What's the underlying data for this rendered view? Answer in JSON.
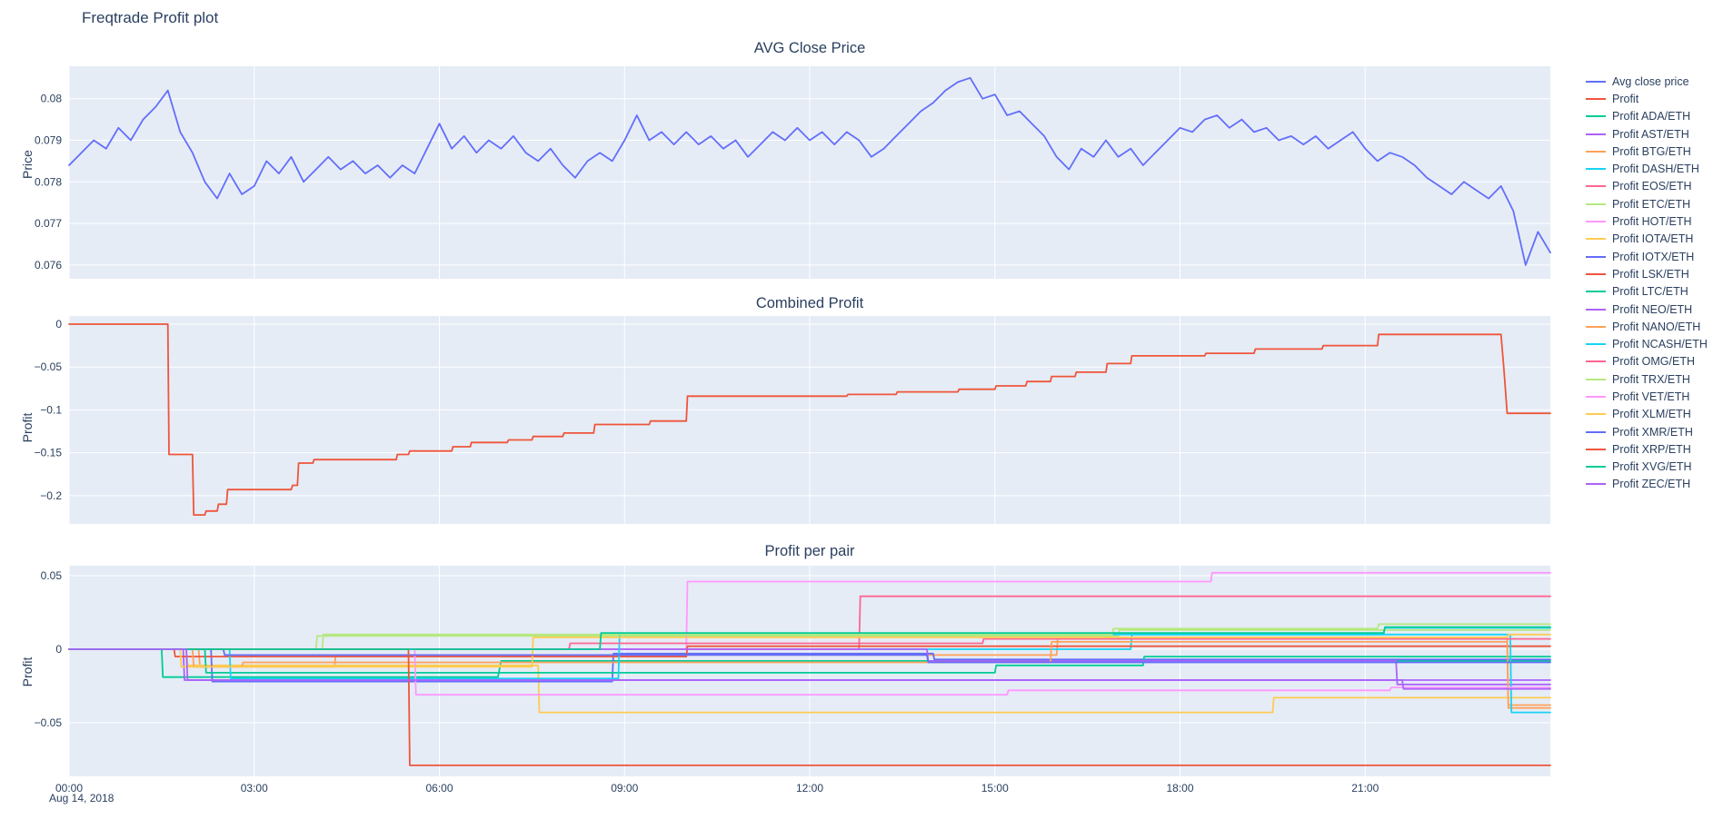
{
  "title": "Freqtrade Profit plot",
  "colors": {
    "text": "#2a3f5f",
    "plot_bg": "#E5ECF6",
    "grid": "#ffffff"
  },
  "xaxis": {
    "range": [
      0,
      24
    ],
    "ticks": [
      0,
      3,
      6,
      9,
      12,
      15,
      18,
      21
    ],
    "ticklabels": [
      "00:00",
      "03:00",
      "06:00",
      "09:00",
      "12:00",
      "15:00",
      "18:00",
      "21:00"
    ],
    "date_label": "Aug 14, 2018"
  },
  "legend": {
    "position": "right"
  },
  "chart_data": [
    {
      "type": "line",
      "title": "AVG Close Price",
      "ylabel": "Price",
      "ylim": [
        0.07567,
        0.08078
      ],
      "yticks": [
        0.076,
        0.077,
        0.078,
        0.079,
        0.08
      ],
      "yticklabels": [
        "0.076",
        "0.077",
        "0.078",
        "0.079",
        "0.08"
      ],
      "series": [
        {
          "name": "Avg close price",
          "color": "#636EFA",
          "x0": 0,
          "dx": 0.2,
          "y": [
            0.0784,
            0.0787,
            0.079,
            0.0788,
            0.0793,
            0.079,
            0.0795,
            0.0798,
            0.0802,
            0.0792,
            0.0787,
            0.078,
            0.0776,
            0.0782,
            0.0777,
            0.0779,
            0.0785,
            0.0782,
            0.0786,
            0.078,
            0.0783,
            0.0786,
            0.0783,
            0.0785,
            0.0782,
            0.0784,
            0.0781,
            0.0784,
            0.0782,
            0.0788,
            0.0794,
            0.0788,
            0.0791,
            0.0787,
            0.079,
            0.0788,
            0.0791,
            0.0787,
            0.0785,
            0.0788,
            0.0784,
            0.0781,
            0.0785,
            0.0787,
            0.0785,
            0.079,
            0.0796,
            0.079,
            0.0792,
            0.0789,
            0.0792,
            0.0789,
            0.0791,
            0.0788,
            0.079,
            0.0786,
            0.0789,
            0.0792,
            0.079,
            0.0793,
            0.079,
            0.0792,
            0.0789,
            0.0792,
            0.079,
            0.0786,
            0.0788,
            0.0791,
            0.0794,
            0.0797,
            0.0799,
            0.0802,
            0.0804,
            0.0805,
            0.08,
            0.0801,
            0.0796,
            0.0797,
            0.0794,
            0.0791,
            0.0786,
            0.0783,
            0.0788,
            0.0786,
            0.079,
            0.0786,
            0.0788,
            0.0784,
            0.0787,
            0.079,
            0.0793,
            0.0792,
            0.0795,
            0.0796,
            0.0793,
            0.0795,
            0.0792,
            0.0793,
            0.079,
            0.0791,
            0.0789,
            0.0791,
            0.0788,
            0.079,
            0.0792,
            0.0788,
            0.0785,
            0.0787,
            0.0786,
            0.0784,
            0.0781,
            0.0779,
            0.0777,
            0.078,
            0.0778,
            0.0776,
            0.0779,
            0.0773,
            0.076,
            0.0768,
            0.0763
          ]
        }
      ]
    },
    {
      "type": "line",
      "title": "Combined Profit",
      "ylabel": "Profit",
      "ylim": [
        -0.233,
        0.0095
      ],
      "yticks": [
        -0.2,
        -0.15,
        -0.1,
        -0.05,
        0
      ],
      "yticklabels": [
        "−0.2",
        "−0.15",
        "−0.1",
        "−0.05",
        "0"
      ],
      "series": [
        {
          "name": "Profit",
          "color": "#EF553B",
          "x": [
            0,
            1.6,
            1.62,
            2.0,
            2.02,
            2.2,
            2.22,
            2.4,
            2.42,
            2.55,
            2.57,
            3.6,
            3.62,
            3.7,
            3.72,
            3.95,
            3.97,
            5.3,
            5.32,
            5.5,
            5.52,
            6.2,
            6.22,
            6.5,
            6.52,
            7.1,
            7.12,
            7.5,
            7.52,
            8.0,
            8.02,
            8.5,
            8.52,
            9.4,
            9.42,
            10.0,
            10.02,
            12.6,
            12.62,
            13.4,
            13.42,
            14.4,
            14.42,
            15.0,
            15.02,
            15.5,
            15.52,
            15.9,
            15.92,
            16.3,
            16.32,
            16.8,
            16.82,
            17.2,
            17.22,
            18.4,
            18.42,
            19.2,
            19.22,
            20.3,
            20.32,
            21.2,
            21.22,
            23.2,
            23.25,
            23.3,
            24
          ],
          "y": [
            0,
            0,
            -0.152,
            -0.152,
            -0.2225,
            -0.2225,
            -0.218,
            -0.218,
            -0.21,
            -0.21,
            -0.193,
            -0.193,
            -0.188,
            -0.188,
            -0.162,
            -0.162,
            -0.158,
            -0.158,
            -0.152,
            -0.152,
            -0.148,
            -0.148,
            -0.143,
            -0.143,
            -0.138,
            -0.138,
            -0.135,
            -0.135,
            -0.131,
            -0.131,
            -0.127,
            -0.127,
            -0.117,
            -0.117,
            -0.113,
            -0.113,
            -0.084,
            -0.084,
            -0.082,
            -0.082,
            -0.079,
            -0.079,
            -0.076,
            -0.076,
            -0.072,
            -0.072,
            -0.067,
            -0.067,
            -0.061,
            -0.061,
            -0.056,
            -0.056,
            -0.046,
            -0.046,
            -0.037,
            -0.037,
            -0.034,
            -0.034,
            -0.029,
            -0.029,
            -0.025,
            -0.025,
            -0.012,
            -0.012,
            -0.055,
            -0.104,
            -0.104
          ]
        }
      ]
    },
    {
      "type": "line",
      "title": "Profit per pair",
      "ylabel": "Profit",
      "ylim": [
        -0.0865,
        0.0568
      ],
      "yticks": [
        -0.05,
        0,
        0.05
      ],
      "yticklabels": [
        "−0.05",
        "0",
        "0.05"
      ],
      "series": [
        {
          "name": "Profit ADA/ETH",
          "color": "#00CC96",
          "x": [
            0,
            1.5,
            1.52,
            6.95,
            7.0,
            24
          ],
          "y": [
            0,
            0,
            -0.019,
            -0.019,
            -0.008,
            -0.008
          ]
        },
        {
          "name": "Profit AST/ETH",
          "color": "#AB63FA",
          "x": [
            0,
            1.85,
            1.87,
            24
          ],
          "y": [
            0,
            0,
            -0.021,
            -0.021
          ]
        },
        {
          "name": "Profit BTG/ETH",
          "color": "#FFA15A",
          "x": [
            0,
            2.1,
            2.12,
            4.3,
            4.32,
            16.0,
            16.02,
            23.3,
            23.32,
            24
          ],
          "y": [
            0,
            0,
            -0.012,
            -0.012,
            -0.004,
            -0.004,
            0.008,
            0.008,
            -0.04,
            -0.04
          ]
        },
        {
          "name": "Profit DASH/ETH",
          "color": "#19D3F3",
          "x": [
            0,
            17.2,
            17.22,
            21.3,
            21.32,
            24
          ],
          "y": [
            0,
            0,
            0.01,
            0.01,
            0.0145,
            0.0145
          ]
        },
        {
          "name": "Profit EOS/ETH",
          "color": "#FF6692",
          "x": [
            0,
            12.8,
            12.82,
            24
          ],
          "y": [
            0,
            0,
            0.036,
            0.036
          ]
        },
        {
          "name": "Profit ETC/ETH",
          "color": "#B6E880",
          "x": [
            0,
            4.0,
            4.02,
            17.0,
            17.02,
            24
          ],
          "y": [
            0,
            0,
            0.009,
            0.009,
            0.013,
            0.013
          ]
        },
        {
          "name": "Profit HOT/ETH",
          "color": "#FF97FF",
          "x": [
            0,
            10.0,
            10.02,
            18.5,
            18.52,
            24
          ],
          "y": [
            0,
            0,
            0.046,
            0.046,
            0.052,
            0.052
          ]
        },
        {
          "name": "Profit IOTA/ETH",
          "color": "#FECB52",
          "x": [
            0,
            1.9,
            1.92,
            7.6,
            7.62,
            19.5,
            19.52,
            24
          ],
          "y": [
            0,
            0,
            -0.011,
            -0.011,
            -0.043,
            -0.043,
            -0.033,
            -0.033
          ]
        },
        {
          "name": "Profit IOTX/ETH",
          "color": "#636EFA",
          "x": [
            0,
            2.3,
            2.32,
            8.8,
            8.82,
            14.0,
            14.02,
            24
          ],
          "y": [
            0,
            0,
            -0.022,
            -0.022,
            -0.003,
            -0.003,
            -0.007,
            -0.007
          ]
        },
        {
          "name": "Profit LSK/ETH",
          "color": "#EF553B",
          "x": [
            0,
            1.7,
            1.72,
            10.0,
            10.02,
            24
          ],
          "y": [
            0,
            0,
            -0.005,
            -0.005,
            0.002,
            0.002
          ]
        },
        {
          "name": "Profit LTC/ETH",
          "color": "#00CC96",
          "x": [
            0,
            2.2,
            2.22,
            15.0,
            15.02,
            17.4,
            17.42,
            24
          ],
          "y": [
            0,
            0,
            -0.016,
            -0.016,
            -0.011,
            -0.011,
            -0.005,
            -0.005
          ]
        },
        {
          "name": "Profit NEO/ETH",
          "color": "#AB63FA",
          "x": [
            0,
            13.9,
            13.92,
            21.5,
            21.52,
            24
          ],
          "y": [
            0,
            0,
            -0.008,
            -0.008,
            -0.024,
            -0.024
          ]
        },
        {
          "name": "Profit NANO/ETH",
          "color": "#FFA15A",
          "x": [
            0,
            2.0,
            2.02,
            2.8,
            2.82,
            15.9,
            15.92,
            23.3,
            23.32,
            24
          ],
          "y": [
            0,
            0,
            -0.012,
            -0.012,
            -0.009,
            -0.009,
            0.005,
            0.005,
            -0.038,
            -0.038
          ]
        },
        {
          "name": "Profit NCASH/ETH",
          "color": "#19D3F3",
          "x": [
            0,
            2.6,
            2.62,
            8.9,
            8.92,
            23.35,
            23.37,
            24
          ],
          "y": [
            0,
            0,
            -0.02,
            -0.02,
            0.01,
            0.01,
            -0.043,
            -0.043
          ]
        },
        {
          "name": "Profit OMG/ETH",
          "color": "#FF6692",
          "x": [
            0,
            8.1,
            8.12,
            14.8,
            14.82,
            24
          ],
          "y": [
            0,
            0,
            0.004,
            0.004,
            0.007,
            0.007
          ]
        },
        {
          "name": "Profit TRX/ETH",
          "color": "#B6E880",
          "x": [
            0,
            4.1,
            4.12,
            16.9,
            16.92,
            21.2,
            21.22,
            24
          ],
          "y": [
            0,
            0,
            0.01,
            0.01,
            0.014,
            0.014,
            0.017,
            0.017
          ]
        },
        {
          "name": "Profit VET/ETH",
          "color": "#FF97FF",
          "x": [
            0,
            5.6,
            5.62,
            15.2,
            15.22,
            21.4,
            21.42,
            24
          ],
          "y": [
            0,
            0,
            -0.031,
            -0.031,
            -0.028,
            -0.028,
            -0.026,
            -0.026
          ]
        },
        {
          "name": "Profit XLM/ETH",
          "color": "#FECB52",
          "x": [
            0,
            1.8,
            1.82,
            7.5,
            7.52,
            23.3,
            23.32,
            24
          ],
          "y": [
            0,
            0,
            -0.012,
            -0.012,
            0.008,
            0.008,
            0.01,
            0.01
          ]
        },
        {
          "name": "Profit XMR/ETH",
          "color": "#636EFA",
          "x": [
            0,
            2.5,
            2.52,
            13.9,
            13.92,
            24
          ],
          "y": [
            0,
            0,
            -0.004,
            -0.004,
            -0.009,
            -0.009
          ]
        },
        {
          "name": "Profit XRP/ETH",
          "color": "#EF553B",
          "x": [
            0,
            5.5,
            5.52,
            24
          ],
          "y": [
            0,
            0,
            -0.079,
            -0.079
          ]
        },
        {
          "name": "Profit XVG/ETH",
          "color": "#00CC96",
          "x": [
            0,
            8.6,
            8.62,
            21.3,
            21.32,
            24
          ],
          "y": [
            0,
            0,
            0.011,
            0.011,
            0.015,
            0.015
          ]
        },
        {
          "name": "Profit ZEC/ETH",
          "color": "#AB63FA",
          "x": [
            0,
            1.9,
            1.92,
            21.6,
            21.62,
            24
          ],
          "y": [
            0,
            0,
            -0.021,
            -0.021,
            -0.027,
            -0.027
          ]
        }
      ]
    }
  ]
}
